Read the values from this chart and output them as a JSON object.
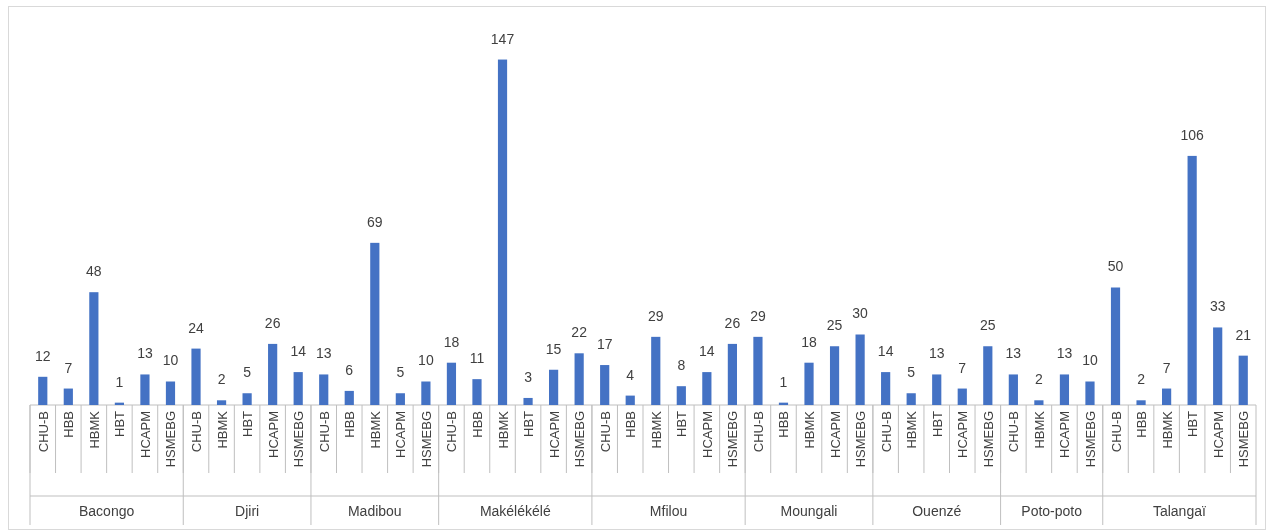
{
  "chart_data": {
    "type": "bar",
    "categories": [
      "Bacongo",
      "Djiri",
      "Madibou",
      "Makélékélé",
      "Mfilou",
      "Moungali",
      "Ouenzé",
      "Poto-poto",
      "Talangaï"
    ],
    "series": [
      {
        "name": "CHU-B",
        "color": "#4472c4",
        "values": [
          12,
          24,
          13,
          18,
          17,
          29,
          14,
          13,
          50
        ]
      },
      {
        "name": "HBB",
        "color": "#4472c4",
        "values": [
          7,
          null,
          6,
          11,
          4,
          1,
          null,
          null,
          2
        ]
      },
      {
        "name": "HBMK",
        "color": "#4472c4",
        "values": [
          48,
          2,
          69,
          147,
          29,
          18,
          5,
          2,
          7
        ]
      },
      {
        "name": "HBT",
        "color": "#4472c4",
        "values": [
          1,
          5,
          null,
          3,
          8,
          null,
          13,
          null,
          106
        ]
      },
      {
        "name": "HCAPM",
        "color": "#4472c4",
        "values": [
          13,
          26,
          5,
          15,
          14,
          25,
          7,
          13,
          33
        ]
      },
      {
        "name": "HSMEBG",
        "color": "#4472c4",
        "values": [
          10,
          14,
          10,
          22,
          26,
          30,
          25,
          10,
          21
        ]
      }
    ],
    "data_labels": true
  }
}
